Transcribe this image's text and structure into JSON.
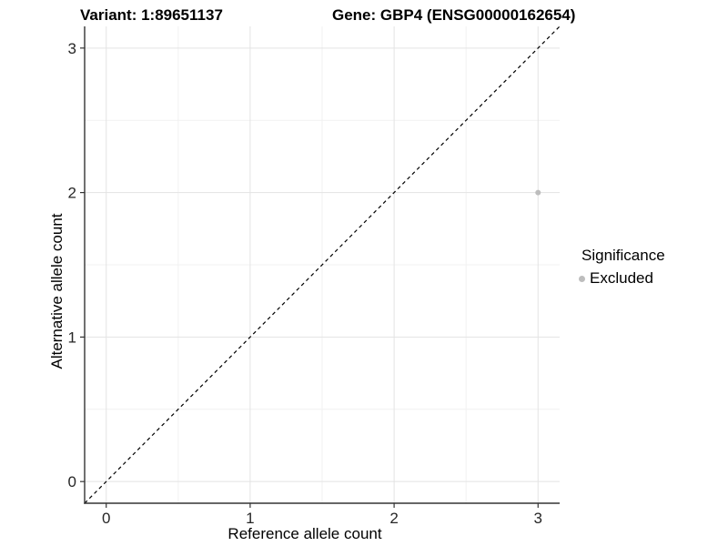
{
  "header": {
    "variant_title": "Variant: 1:89651137",
    "gene_title": "Gene: GBP4 (ENSG00000162654)"
  },
  "axes": {
    "x_label": "Reference allele count",
    "y_label": "Alternative allele count"
  },
  "legend": {
    "title": "Significance",
    "items": [
      {
        "label": "Excluded",
        "color": "#bdbdbd"
      }
    ]
  },
  "colors": {
    "background": "#ffffff",
    "grid_major": "#e3e3e3",
    "grid_minor": "#f1f1f1",
    "axis_line": "#333333",
    "tick_mark": "#333333",
    "tick_label": "#262626",
    "diagonal_line": "#000000",
    "excluded_point": "#bdbdbd"
  },
  "chart_data": {
    "type": "scatter",
    "title": "Variant: 1:89651137    Gene: GBP4 (ENSG00000162654)",
    "xlabel": "Reference allele count",
    "ylabel": "Alternative allele count",
    "xlim": [
      -0.15,
      3.15
    ],
    "ylim": [
      -0.15,
      3.15
    ],
    "x_ticks": [
      0,
      1,
      2,
      3
    ],
    "y_ticks": [
      0,
      1,
      2,
      3
    ],
    "x_minor_ticks": [
      0.5,
      1.5,
      2.5
    ],
    "y_minor_ticks": [
      0.5,
      1.5,
      2.5
    ],
    "grid": true,
    "legend_position": "right",
    "series": [
      {
        "name": "Excluded",
        "color": "#bdbdbd",
        "point_radius": 3,
        "points": [
          {
            "x": 3,
            "y": 2
          }
        ]
      }
    ],
    "reference_line": {
      "kind": "identity-diagonal",
      "equation": "y = x",
      "style": "dashed",
      "color": "#000000"
    }
  }
}
